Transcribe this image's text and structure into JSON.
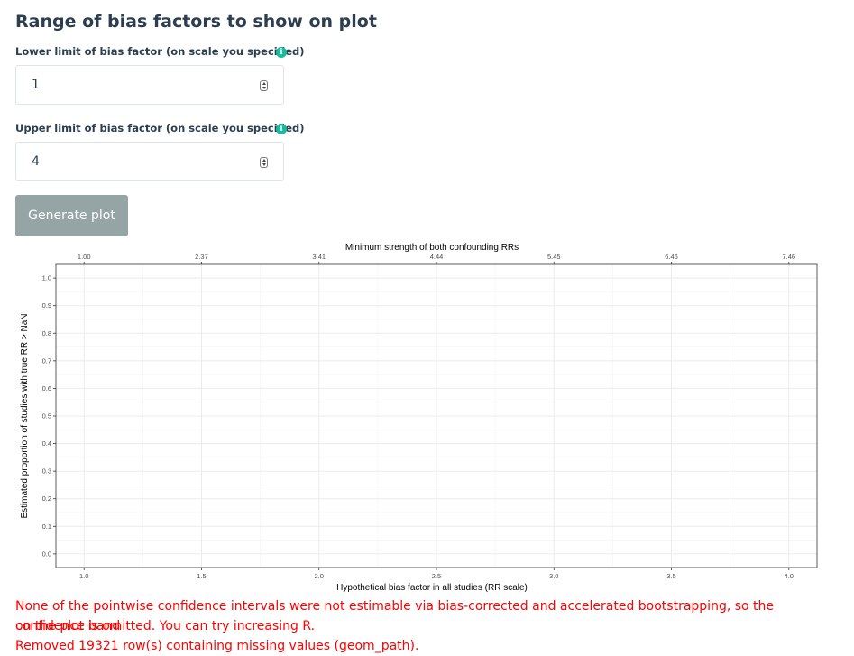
{
  "section": {
    "title": "Range of bias factors to show on plot"
  },
  "lower": {
    "label": "Lower limit of bias factor (on scale you specified)",
    "value": "1",
    "info_icon": "info-circle-icon"
  },
  "upper": {
    "label": "Upper limit of bias factor (on scale you specified)",
    "value": "4",
    "info_icon": "info-circle-icon"
  },
  "generate_button": {
    "label": "Generate plot"
  },
  "colors": {
    "accent": "#18bc9c",
    "button": "#95a5a6",
    "warning": "#ff0000",
    "text": "#2c3e50"
  },
  "chart_data": {
    "type": "line",
    "title": "",
    "top_axis_label": "Minimum strength of both confounding RRs",
    "top_ticks": [
      "1.00",
      "2.37",
      "3.41",
      "4.44",
      "5.45",
      "6.46",
      "7.46"
    ],
    "xlabel": "Hypothetical bias factor in all studies (RR scale)",
    "ylabel": "Estimated proportion of studies with true RR > NaN",
    "x_ticks": [
      "1.0",
      "1.5",
      "2.0",
      "2.5",
      "3.0",
      "3.5",
      "4.0"
    ],
    "y_ticks": [
      "0.0",
      "0.1",
      "0.2",
      "0.3",
      "0.4",
      "0.5",
      "0.6",
      "0.7",
      "0.8",
      "0.9",
      "1.0"
    ],
    "xlim": [
      1,
      4
    ],
    "ylim": [
      0,
      1
    ],
    "grid": true,
    "series": []
  },
  "messages": {
    "warning_1": "None of the pointwise confidence intervals were not estimable via bias-corrected and accelerated bootstrapping, so the confidence band",
    "warning_2": "on the plot is omitted. You can try increasing R.",
    "warning_3": "Removed 19321 row(s) containing missing values (geom_path)."
  }
}
